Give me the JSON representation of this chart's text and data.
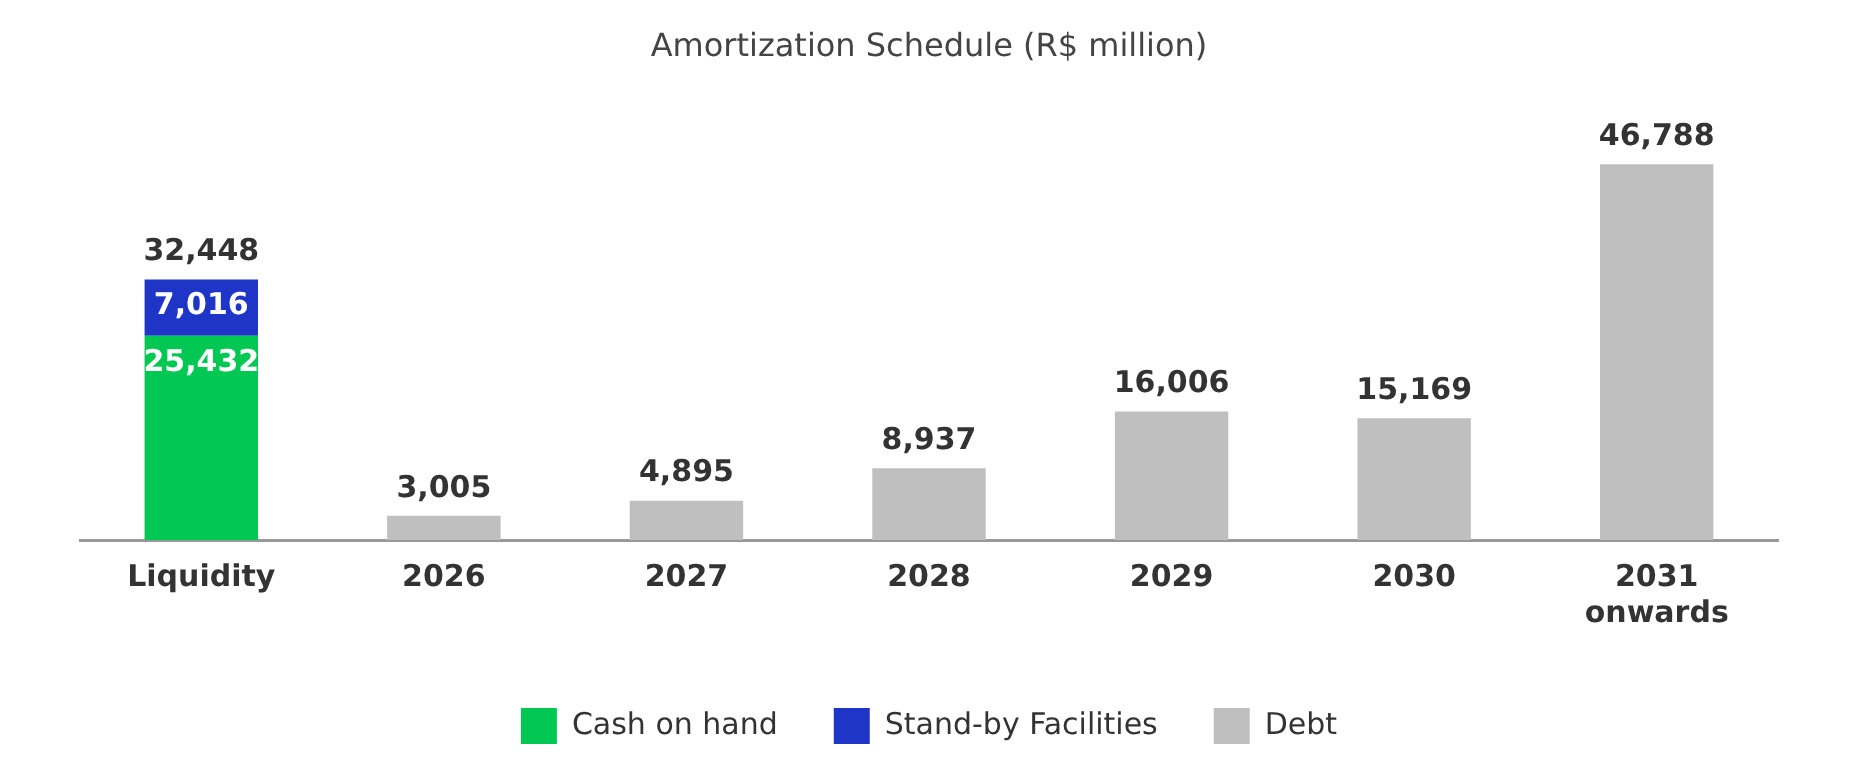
{
  "chart_data": {
    "type": "bar",
    "title": "Amortization Schedule (R$ million)",
    "stacked": true,
    "legend": "bottom",
    "grid": false,
    "tick_labels": "x",
    "categories": [
      "Liquidity",
      "2026",
      "2027",
      "2028",
      "2029",
      "2030",
      "2031\nonwards"
    ],
    "series": [
      {
        "name": "Cash on hand",
        "color": "#00c853",
        "values": [
          25432,
          null,
          null,
          null,
          null,
          null,
          null
        ],
        "value_labels": [
          "25,432",
          null,
          null,
          null,
          null,
          null,
          null
        ]
      },
      {
        "name": "Stand-by Facilities",
        "color": "#1f35c8",
        "values": [
          7016,
          null,
          null,
          null,
          null,
          null,
          null
        ],
        "value_labels": [
          "7,016",
          null,
          null,
          null,
          null,
          null,
          null
        ]
      },
      {
        "name": "Debt",
        "color": "#bfbfbf",
        "values": [
          null,
          3005,
          4895,
          8937,
          16006,
          15169,
          46788
        ],
        "value_labels": [
          null,
          "3,005",
          "4,895",
          "8,937",
          "16,006",
          "15,169",
          "46,788"
        ]
      }
    ],
    "totals": [
      "32,448",
      null,
      null,
      null,
      null,
      null,
      null
    ]
  }
}
